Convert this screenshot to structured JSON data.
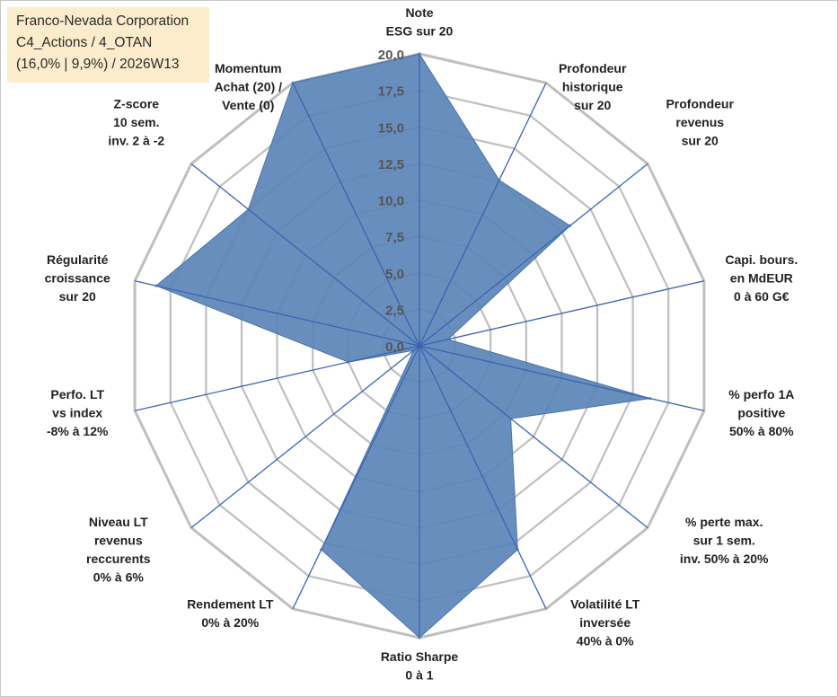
{
  "title": {
    "line1": "Franco-Nevada Corporation",
    "line2": "C4_Actions / 4_OTAN",
    "line3": "(16,0% | 9,9%) / 2026W13"
  },
  "colors": {
    "fill": "#5b84b8",
    "grid": "#bfbfbf",
    "spoke": "#3a64b4",
    "title_bg": "#fdeccb"
  },
  "chart_data": {
    "type": "radar",
    "rmin": 0,
    "rmax": 20,
    "ticks": [
      "0,0",
      "2,5",
      "5,0",
      "7,5",
      "10,0",
      "12,5",
      "15,0",
      "17,5",
      "20,0"
    ],
    "axes": [
      {
        "lines": [
          "Note",
          "ESG sur 20"
        ],
        "value": 20
      },
      {
        "lines": [
          "Profondeur",
          "historique",
          "sur 20"
        ],
        "value": 12.6
      },
      {
        "lines": [
          "Profondeur",
          "revenus",
          "sur 20"
        ],
        "value": 13.2
      },
      {
        "lines": [
          "Capi. bours.",
          "en MdEUR",
          "0 à 60 G€"
        ],
        "value": 2.0
      },
      {
        "lines": [
          "% perfo 1A",
          "positive",
          "50% à 80%"
        ],
        "value": 16.2
      },
      {
        "lines": [
          "% perte max.",
          "sur 1 sem.",
          "inv. 50% à 20%"
        ],
        "value": 8.0
      },
      {
        "lines": [
          "Volatilité LT",
          "inversée",
          "40% à 0%"
        ],
        "value": 15.5
      },
      {
        "lines": [
          "Ratio Sharpe",
          "0 à 1"
        ],
        "value": 20
      },
      {
        "lines": [
          "Rendement LT",
          "0% à 20%"
        ],
        "value": 15.5
      },
      {
        "lines": [
          "Niveau LT",
          "revenus",
          "reccurents",
          "0% à 6%"
        ],
        "value": 0.5
      },
      {
        "lines": [
          "Perfo. LT",
          "vs index",
          "-8% à 12%"
        ],
        "value": 5.0
      },
      {
        "lines": [
          "Régularité",
          "croissance",
          "sur 20"
        ],
        "value": 18.5
      },
      {
        "lines": [
          "Z-score",
          "10 sem.",
          "inv. 2 à -2"
        ],
        "value": 15.0
      },
      {
        "lines": [
          "Momentum",
          "Achat (20) /",
          "Vente (0)"
        ],
        "value": 20
      }
    ]
  }
}
